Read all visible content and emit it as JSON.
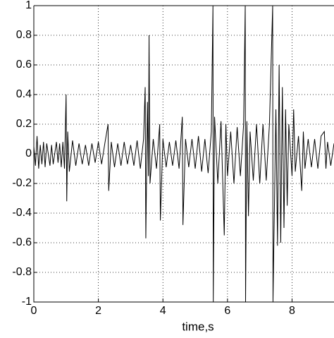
{
  "chart_data": {
    "type": "line",
    "xlabel": "time,s",
    "x": [
      0,
      0.05,
      0.1,
      0.15,
      0.2,
      0.25,
      0.3,
      0.35,
      0.4,
      0.5,
      0.55,
      0.6,
      0.7,
      0.75,
      0.8,
      0.85,
      0.9,
      0.95,
      1.0,
      1.02,
      1.05,
      1.1,
      1.2,
      1.3,
      1.4,
      1.5,
      1.6,
      1.7,
      1.8,
      1.9,
      2.0,
      2.1,
      2.2,
      2.3,
      2.32,
      2.4,
      2.5,
      2.6,
      2.7,
      2.8,
      2.9,
      3.0,
      3.1,
      3.2,
      3.3,
      3.4,
      3.45,
      3.47,
      3.52,
      3.55,
      3.57,
      3.6,
      3.7,
      3.8,
      3.9,
      3.92,
      4.0,
      4.1,
      4.2,
      4.3,
      4.4,
      4.5,
      4.6,
      4.62,
      4.7,
      4.8,
      4.9,
      5.0,
      5.1,
      5.2,
      5.3,
      5.4,
      5.5,
      5.55,
      5.56,
      5.6,
      5.7,
      5.8,
      5.9,
      5.95,
      6.0,
      6.1,
      6.2,
      6.3,
      6.4,
      6.5,
      6.55,
      6.56,
      6.6,
      6.65,
      6.7,
      6.8,
      6.9,
      7.0,
      7.1,
      7.2,
      7.3,
      7.4,
      7.41,
      7.5,
      7.55,
      7.6,
      7.65,
      7.7,
      7.75,
      7.8,
      7.85,
      7.9,
      8.0,
      8.05,
      8.1,
      8.2,
      8.3,
      8.35,
      8.4,
      8.5,
      8.6,
      8.7,
      8.8,
      8.9,
      9.0,
      9.05,
      9.1,
      9.2,
      9.3
    ],
    "series": [
      {
        "color": "#000000",
        "values": [
          0.05,
          -0.08,
          0.12,
          -0.1,
          0.06,
          -0.07,
          0.08,
          -0.09,
          0.07,
          -0.08,
          0.06,
          -0.07,
          0.08,
          -0.06,
          0.07,
          -0.09,
          0.08,
          -0.1,
          0.4,
          -0.32,
          0.15,
          -0.12,
          0.09,
          -0.08,
          0.07,
          -0.07,
          0.06,
          -0.08,
          0.07,
          -0.06,
          0.08,
          -0.07,
          0.07,
          0.2,
          -0.25,
          0.08,
          -0.09,
          0.07,
          -0.08,
          0.08,
          -0.07,
          0.06,
          -0.08,
          0.09,
          -0.1,
          0.1,
          0.45,
          -0.57,
          0.35,
          -0.15,
          0.8,
          -0.2,
          0.1,
          -0.1,
          0.2,
          -0.45,
          0.1,
          -0.09,
          0.08,
          -0.08,
          0.09,
          -0.1,
          0.25,
          -0.48,
          0.1,
          -0.09,
          0.1,
          -0.1,
          0.12,
          -0.12,
          0.1,
          -0.13,
          0.15,
          1,
          -1,
          0.25,
          -0.2,
          0.22,
          -0.55,
          0.2,
          -0.15,
          0.15,
          -0.2,
          0.18,
          -0.15,
          0.2,
          1,
          -1,
          0.22,
          -0.42,
          0.15,
          -0.18,
          0.2,
          -0.2,
          0.2,
          -0.18,
          0.2,
          1,
          -1,
          0.3,
          -0.62,
          0.6,
          -0.6,
          0.45,
          -0.5,
          0.3,
          -0.35,
          0.2,
          -0.15,
          0.3,
          -0.12,
          0.12,
          -0.25,
          0.15,
          -0.1,
          0.1,
          -0.09,
          0.1,
          -0.1,
          0.12,
          0.15,
          -0.1,
          0.08,
          -0.08,
          0.07
        ]
      }
    ],
    "xlim": [
      0,
      9.3
    ],
    "xticks": [
      0,
      2,
      4,
      6,
      8
    ],
    "ylim": [
      -1,
      1
    ],
    "yticks": [
      -1,
      -0.8,
      -0.6,
      -0.4,
      -0.2,
      0,
      0.2,
      0.4,
      0.6,
      0.8,
      1
    ],
    "grid": true
  }
}
